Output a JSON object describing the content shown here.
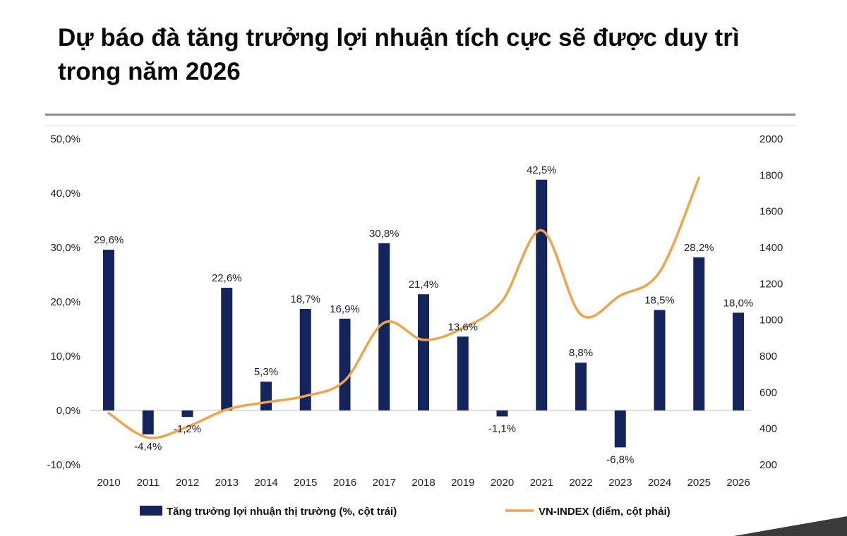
{
  "title": "Dự báo đà tăng trưởng lợi nhuận tích cực sẽ được duy trì trong năm 2026",
  "colors": {
    "bars": "#14245c",
    "line": "#eea44b",
    "title_rule": "#8c8c8c"
  },
  "chart_data": {
    "type": "bar",
    "categories": [
      "2010",
      "2011",
      "2012",
      "2013",
      "2014",
      "2015",
      "2016",
      "2017",
      "2018",
      "2019",
      "2020",
      "2021",
      "2022",
      "2023",
      "2024",
      "2025",
      "2026"
    ],
    "series": [
      {
        "name": "Tăng trưởng lợi nhuận thị trường (%, cột trái)",
        "type": "bar",
        "axis": "left",
        "values": [
          29.6,
          -4.4,
          -1.2,
          22.6,
          5.3,
          18.7,
          16.9,
          30.8,
          21.4,
          13.6,
          -1.1,
          42.5,
          8.8,
          -6.8,
          18.5,
          28.2,
          18.0
        ],
        "labels": [
          "29,6%",
          "-4,4%",
          "-1,2%",
          "22,6%",
          "5,3%",
          "18,7%",
          "16,9%",
          "30,8%",
          "21,4%",
          "13,6%",
          "-1,1%",
          "42,5%",
          "8,8%",
          "-6,8%",
          "18,5%",
          "28,2%",
          "18,0%"
        ]
      },
      {
        "name": "VN-INDEX (điểm, cột phải)",
        "type": "line",
        "axis": "right",
        "smooth": true,
        "values": [
          485,
          350,
          410,
          505,
          545,
          580,
          665,
          985,
          890,
          955,
          1105,
          1495,
          1030,
          1135,
          1265,
          1785,
          null
        ]
      }
    ],
    "y_left": {
      "ylim": [
        -10,
        50
      ],
      "ticks": [
        -10,
        0,
        10,
        20,
        30,
        40,
        50
      ],
      "tick_labels": [
        "-10,0%",
        "0,0%",
        "10,0%",
        "20,0%",
        "30,0%",
        "40,0%",
        "50,0%"
      ]
    },
    "y_right": {
      "ylim": [
        200,
        2000
      ],
      "ticks": [
        200,
        400,
        600,
        800,
        1000,
        1200,
        1400,
        1600,
        1800,
        2000
      ],
      "tick_labels": [
        "200",
        "400",
        "600",
        "800",
        "1000",
        "1200",
        "1400",
        "1600",
        "1800",
        "2000"
      ]
    },
    "grid": false,
    "legend_position": "bottom"
  }
}
